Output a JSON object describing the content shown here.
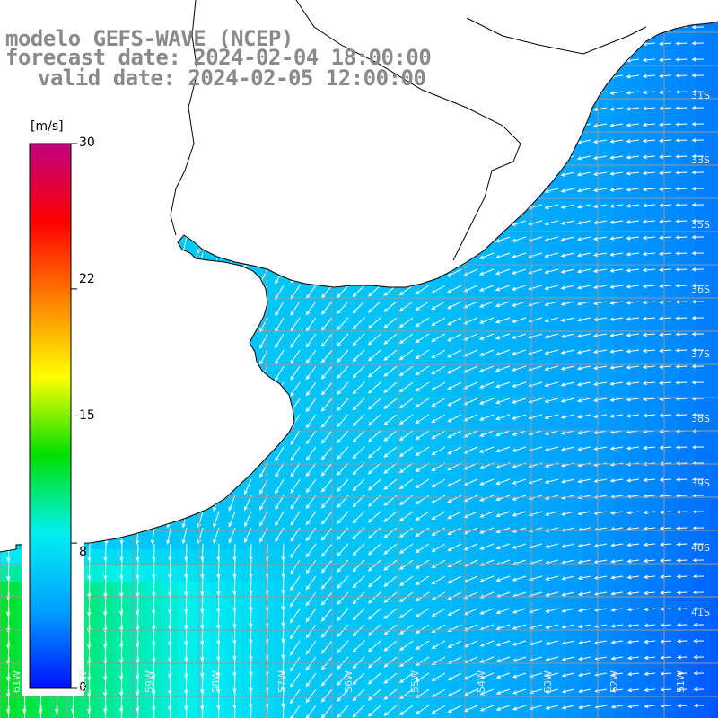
{
  "title": {
    "line1": "modelo GEFS-WAVE (NCEP)",
    "line2": "forecast date: 2024-02-04 18:00:00",
    "line3": "valid date: 2024-02-05 12:00:00"
  },
  "colorbar": {
    "unit": "[m/s]",
    "ticks": [
      "30",
      "22",
      "15",
      "8",
      "0"
    ],
    "tick_values": [
      30,
      22,
      15,
      8,
      0
    ],
    "range": [
      0,
      30
    ],
    "colors": [
      "#0010ff",
      "#00a0ff",
      "#00f0f0",
      "#00e000",
      "#ffff00",
      "#ff8000",
      "#ff0000",
      "#c00080"
    ]
  },
  "map_labels": {
    "lat": [
      "31S",
      "33S",
      "35S",
      "36S",
      "37S",
      "38S",
      "39S",
      "40S",
      "41S"
    ],
    "lon": [
      "61W",
      "60W",
      "59W",
      "58W",
      "57W",
      "56W",
      "55W",
      "54W",
      "53W",
      "52W",
      "51W"
    ]
  },
  "colors": {
    "grid": "#9a9a9a",
    "land": "#ffffff",
    "coast": "#000000",
    "arrow": "#ffffff",
    "title": "#8a8a8a"
  }
}
